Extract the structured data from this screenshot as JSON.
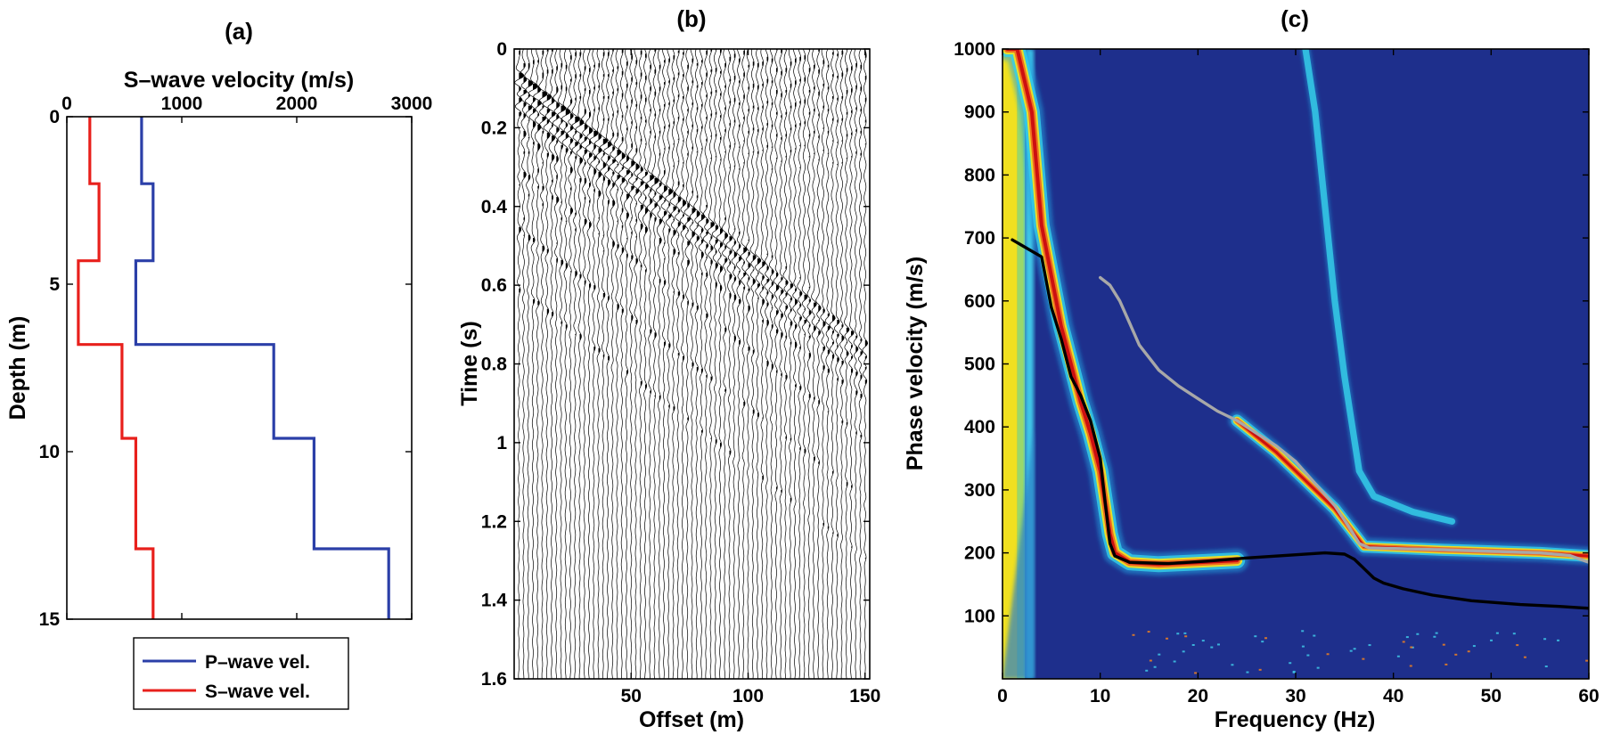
{
  "colors": {
    "p_wave": "#2b3fa8",
    "s_wave": "#e8201c",
    "background_heat": "#1e2f8c",
    "black_curve": "#000000",
    "gray_curve": "#a8a8a8"
  },
  "chart_data": [
    {
      "id": "a",
      "type": "line",
      "panel_label": "(a)",
      "title": "S–wave velocity (m/s)",
      "xlabel": "",
      "ylabel": "Depth (m)",
      "xlim": [
        0,
        3000
      ],
      "ylim": [
        0,
        15
      ],
      "x_axis_position": "top",
      "y_reversed": true,
      "x_ticks": [
        0,
        1000,
        2000,
        3000
      ],
      "y_ticks": [
        0,
        5,
        10,
        15
      ],
      "legend_placement": "bottom",
      "series": [
        {
          "name": "P–wave vel.",
          "color": "#2b3fa8",
          "step_profile": true,
          "points": [
            [
              650,
              0
            ],
            [
              650,
              2
            ],
            [
              750,
              2
            ],
            [
              750,
              4.3
            ],
            [
              600,
              4.3
            ],
            [
              600,
              6.8
            ],
            [
              1800,
              6.8
            ],
            [
              1800,
              9.6
            ],
            [
              2150,
              9.6
            ],
            [
              2150,
              12.9
            ],
            [
              2800,
              12.9
            ],
            [
              2800,
              15
            ]
          ]
        },
        {
          "name": "S–wave vel.",
          "color": "#e8201c",
          "step_profile": true,
          "points": [
            [
              200,
              0
            ],
            [
              200,
              2
            ],
            [
              280,
              2
            ],
            [
              280,
              4.3
            ],
            [
              100,
              4.3
            ],
            [
              100,
              6.8
            ],
            [
              480,
              6.8
            ],
            [
              480,
              9.6
            ],
            [
              600,
              9.6
            ],
            [
              600,
              12.9
            ],
            [
              750,
              12.9
            ],
            [
              750,
              15
            ]
          ]
        }
      ]
    },
    {
      "id": "b",
      "type": "wiggle",
      "panel_label": "(b)",
      "title": "",
      "xlabel": "Offset (m)",
      "ylabel": "Time (s)",
      "xlim": [
        0,
        152
      ],
      "ylim": [
        0,
        1.6
      ],
      "y_reversed": true,
      "x_ticks": [
        50,
        100,
        150
      ],
      "y_ticks": [
        0,
        0.2,
        0.4,
        0.6,
        0.8,
        1,
        1.2,
        1.4,
        1.6
      ],
      "trace_spacing_m": 2,
      "first_offset_m": 2,
      "last_offset_m": 150,
      "events": [
        {
          "t0": 0.06,
          "slowness": 0.0046,
          "amp": 1.0
        },
        {
          "t0": 0.09,
          "slowness": 0.0046,
          "amp": 0.85
        },
        {
          "t0": 0.12,
          "slowness": 0.0046,
          "amp": 0.75
        },
        {
          "t0": 0.15,
          "slowness": 0.0046,
          "amp": 0.6
        },
        {
          "t0": 0.2,
          "slowness": 0.0046,
          "amp": 0.45
        },
        {
          "t0": 0.3,
          "slowness": 0.0046,
          "amp": 0.4
        },
        {
          "t0": 0.45,
          "slowness": 0.0046,
          "amp": 0.35
        },
        {
          "t0": 0.6,
          "slowness": 0.0046,
          "amp": 0.3
        }
      ]
    },
    {
      "id": "c",
      "type": "heatmap",
      "panel_label": "(c)",
      "title": "",
      "xlabel": "Frequency (Hz)",
      "ylabel": "Phase velocity (m/s)",
      "xlim": [
        0,
        60
      ],
      "ylim": [
        0,
        1000
      ],
      "x_ticks": [
        0,
        10,
        20,
        30,
        40,
        50,
        60
      ],
      "y_ticks": [
        100,
        200,
        300,
        400,
        500,
        600,
        700,
        800,
        900,
        1000
      ],
      "colormap": "jet",
      "ridges": [
        {
          "name": "fundamental",
          "points": [
            [
              0.5,
              1000
            ],
            [
              1.5,
              1000
            ],
            [
              3.0,
              900
            ],
            [
              4.0,
              720
            ],
            [
              5.0,
              640
            ],
            [
              6.0,
              560
            ],
            [
              7.0,
              500
            ],
            [
              8.0,
              440
            ],
            [
              9.0,
              390
            ],
            [
              10.0,
              330
            ],
            [
              11.0,
              230
            ],
            [
              11.5,
              200
            ],
            [
              13,
              185
            ],
            [
              16,
              182
            ],
            [
              20,
              185
            ],
            [
              24,
              188
            ]
          ]
        },
        {
          "name": "higher-mode-1",
          "points": [
            [
              24,
              410
            ],
            [
              26,
              385
            ],
            [
              28,
              360
            ],
            [
              30,
              330
            ],
            [
              32,
              300
            ],
            [
              34,
              270
            ],
            [
              35.5,
              240
            ],
            [
              37,
              210
            ],
            [
              45,
              205
            ],
            [
              55,
              200
            ],
            [
              60,
              195
            ]
          ]
        },
        {
          "name": "higher-mode-2",
          "points": [
            [
              31,
              1000
            ],
            [
              32,
              900
            ],
            [
              33,
              750
            ],
            [
              34,
              600
            ],
            [
              35,
              480
            ],
            [
              36.5,
              330
            ],
            [
              38,
              290
            ],
            [
              42,
              265
            ],
            [
              46,
              250
            ]
          ]
        }
      ],
      "curves": [
        {
          "name": "black",
          "color": "#000000",
          "points": [
            [
              1,
              697
            ],
            [
              4,
              670
            ],
            [
              5,
              590
            ],
            [
              6,
              540
            ],
            [
              7,
              480
            ],
            [
              8,
              450
            ],
            [
              9,
              410
            ],
            [
              10,
              350
            ],
            [
              10.5,
              280
            ],
            [
              11,
              215
            ],
            [
              11.5,
              195
            ],
            [
              13,
              185
            ],
            [
              17,
              183
            ],
            [
              21,
              187
            ],
            [
              25,
              192
            ],
            [
              29,
              196
            ],
            [
              33,
              200
            ],
            [
              35,
              198
            ],
            [
              36,
              190
            ],
            [
              37,
              175
            ],
            [
              38,
              160
            ],
            [
              39,
              152
            ],
            [
              41,
              143
            ],
            [
              44,
              133
            ],
            [
              48,
              124
            ],
            [
              53,
              118
            ],
            [
              57,
              115
            ],
            [
              60,
              112
            ]
          ]
        },
        {
          "name": "gray",
          "color": "#a8a8a8",
          "points": [
            [
              10,
              637
            ],
            [
              11,
              625
            ],
            [
              12,
              600
            ],
            [
              13,
              565
            ],
            [
              14,
              530
            ],
            [
              16,
              490
            ],
            [
              18,
              465
            ],
            [
              20,
              445
            ],
            [
              22,
              425
            ],
            [
              24,
              410
            ],
            [
              26,
              390
            ],
            [
              28,
              370
            ],
            [
              30,
              345
            ],
            [
              32,
              310
            ],
            [
              34,
              275
            ],
            [
              35.5,
              240
            ],
            [
              36.5,
              215
            ],
            [
              37.5,
              208
            ],
            [
              45,
              205
            ],
            [
              55,
              200
            ],
            [
              58,
              196
            ],
            [
              60,
              185
            ]
          ]
        }
      ]
    }
  ]
}
